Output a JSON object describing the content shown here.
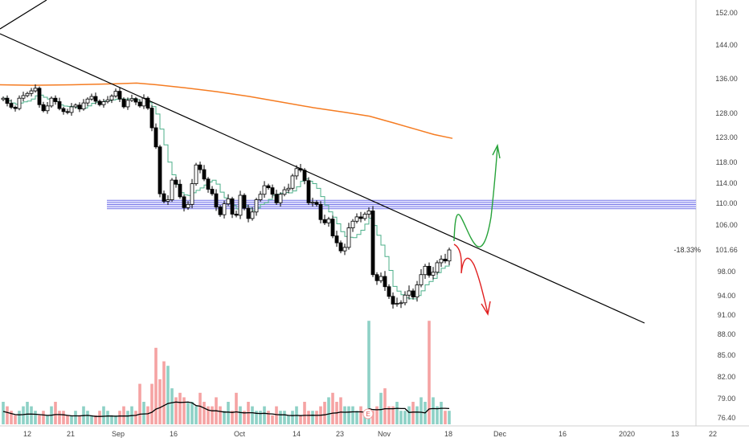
{
  "chart_data": {
    "type": "candlestick",
    "x_tick_labels": [
      "12",
      "21",
      "Sep",
      "16",
      "Oct",
      "14",
      "23",
      "Nov",
      "18",
      "Dec",
      "16",
      "2020",
      "13",
      "22"
    ],
    "y_tick_labels": [
      "152.00",
      "144.00",
      "136.00",
      "128.00",
      "123.00",
      "118.00",
      "114.00",
      "110.00",
      "106.00",
      "101.66",
      "98.00",
      "94.00",
      "91.00",
      "88.00",
      "85.00",
      "82.00",
      "79.00",
      "76.40"
    ],
    "y_tick_values": [
      152,
      144,
      136,
      128,
      123,
      118,
      114,
      110,
      106,
      101.66,
      98,
      94,
      91,
      88,
      85,
      82,
      79,
      76.4
    ],
    "last_price": {
      "label": "101.66",
      "change_label": "-18.33%",
      "value": 101.66
    },
    "earnings_marker": "E",
    "resistance_band": {
      "low": 109,
      "high": 110.6
    },
    "close": [
      131.5,
      130.3,
      129.4,
      129.1,
      131.5,
      132.1,
      132.6,
      133.2,
      133.8,
      130.0,
      128.6,
      129.7,
      131.5,
      130.7,
      129.1,
      128.4,
      128.2,
      129.5,
      129.9,
      129.0,
      130.4,
      131.3,
      131.9,
      130.8,
      130.0,
      130.7,
      131.1,
      132.0,
      133.1,
      131.3,
      129.5,
      131.0,
      131.4,
      130.6,
      129.7,
      131.5,
      129.2,
      125.0,
      121.1,
      111.9,
      110.4,
      110.7,
      114.6,
      113.8,
      111.3,
      109.2,
      109.8,
      113.9,
      117.5,
      116.6,
      114.8,
      112.8,
      111.9,
      109.3,
      107.9,
      109.9,
      110.9,
      108.0,
      107.8,
      111.6,
      109.1,
      107.2,
      108.4,
      110.7,
      111.8,
      113.5,
      113.1,
      111.8,
      110.1,
      111.8,
      112.7,
      113.0,
      115.4,
      116.8,
      116.5,
      114.5,
      110.1,
      110.2,
      109.8,
      107.0,
      106.4,
      107.1,
      104.1,
      102.9,
      101.5,
      102.1,
      105.5,
      106.7,
      107.5,
      107.2,
      108.0,
      108.6,
      97.5,
      96.5,
      97.2,
      95.5,
      93.9,
      92.7,
      92.8,
      92.9,
      94.1,
      94.8,
      93.8,
      95.8,
      97.5,
      98.9,
      97.4,
      97.9,
      99.5,
      100.1,
      99.8,
      101.66
    ],
    "volume": [
      5,
      4,
      3,
      2,
      3,
      4,
      5,
      4,
      3,
      2,
      3,
      2,
      4,
      5,
      3,
      3,
      2,
      2,
      3,
      2,
      4,
      3,
      2,
      2,
      3,
      4,
      3,
      2,
      2,
      3,
      4,
      3,
      4,
      3,
      9,
      5,
      4,
      9,
      17,
      10,
      14,
      13,
      8,
      6,
      7,
      6,
      5,
      5,
      4,
      7,
      5,
      4,
      4,
      6,
      4,
      3,
      5,
      3,
      7,
      4,
      3,
      5,
      4,
      3,
      3,
      4,
      3,
      2,
      4,
      3,
      3,
      2,
      3,
      4,
      2,
      5,
      3,
      3,
      3,
      4,
      5,
      6,
      7,
      5,
      6,
      4,
      4,
      4,
      3,
      4,
      3,
      23,
      3,
      4,
      7,
      8,
      4,
      4,
      5,
      3,
      3,
      4,
      5,
      4,
      6,
      5,
      23,
      6,
      4,
      5,
      3,
      3
    ],
    "xlabel": "",
    "ylabel": ""
  }
}
